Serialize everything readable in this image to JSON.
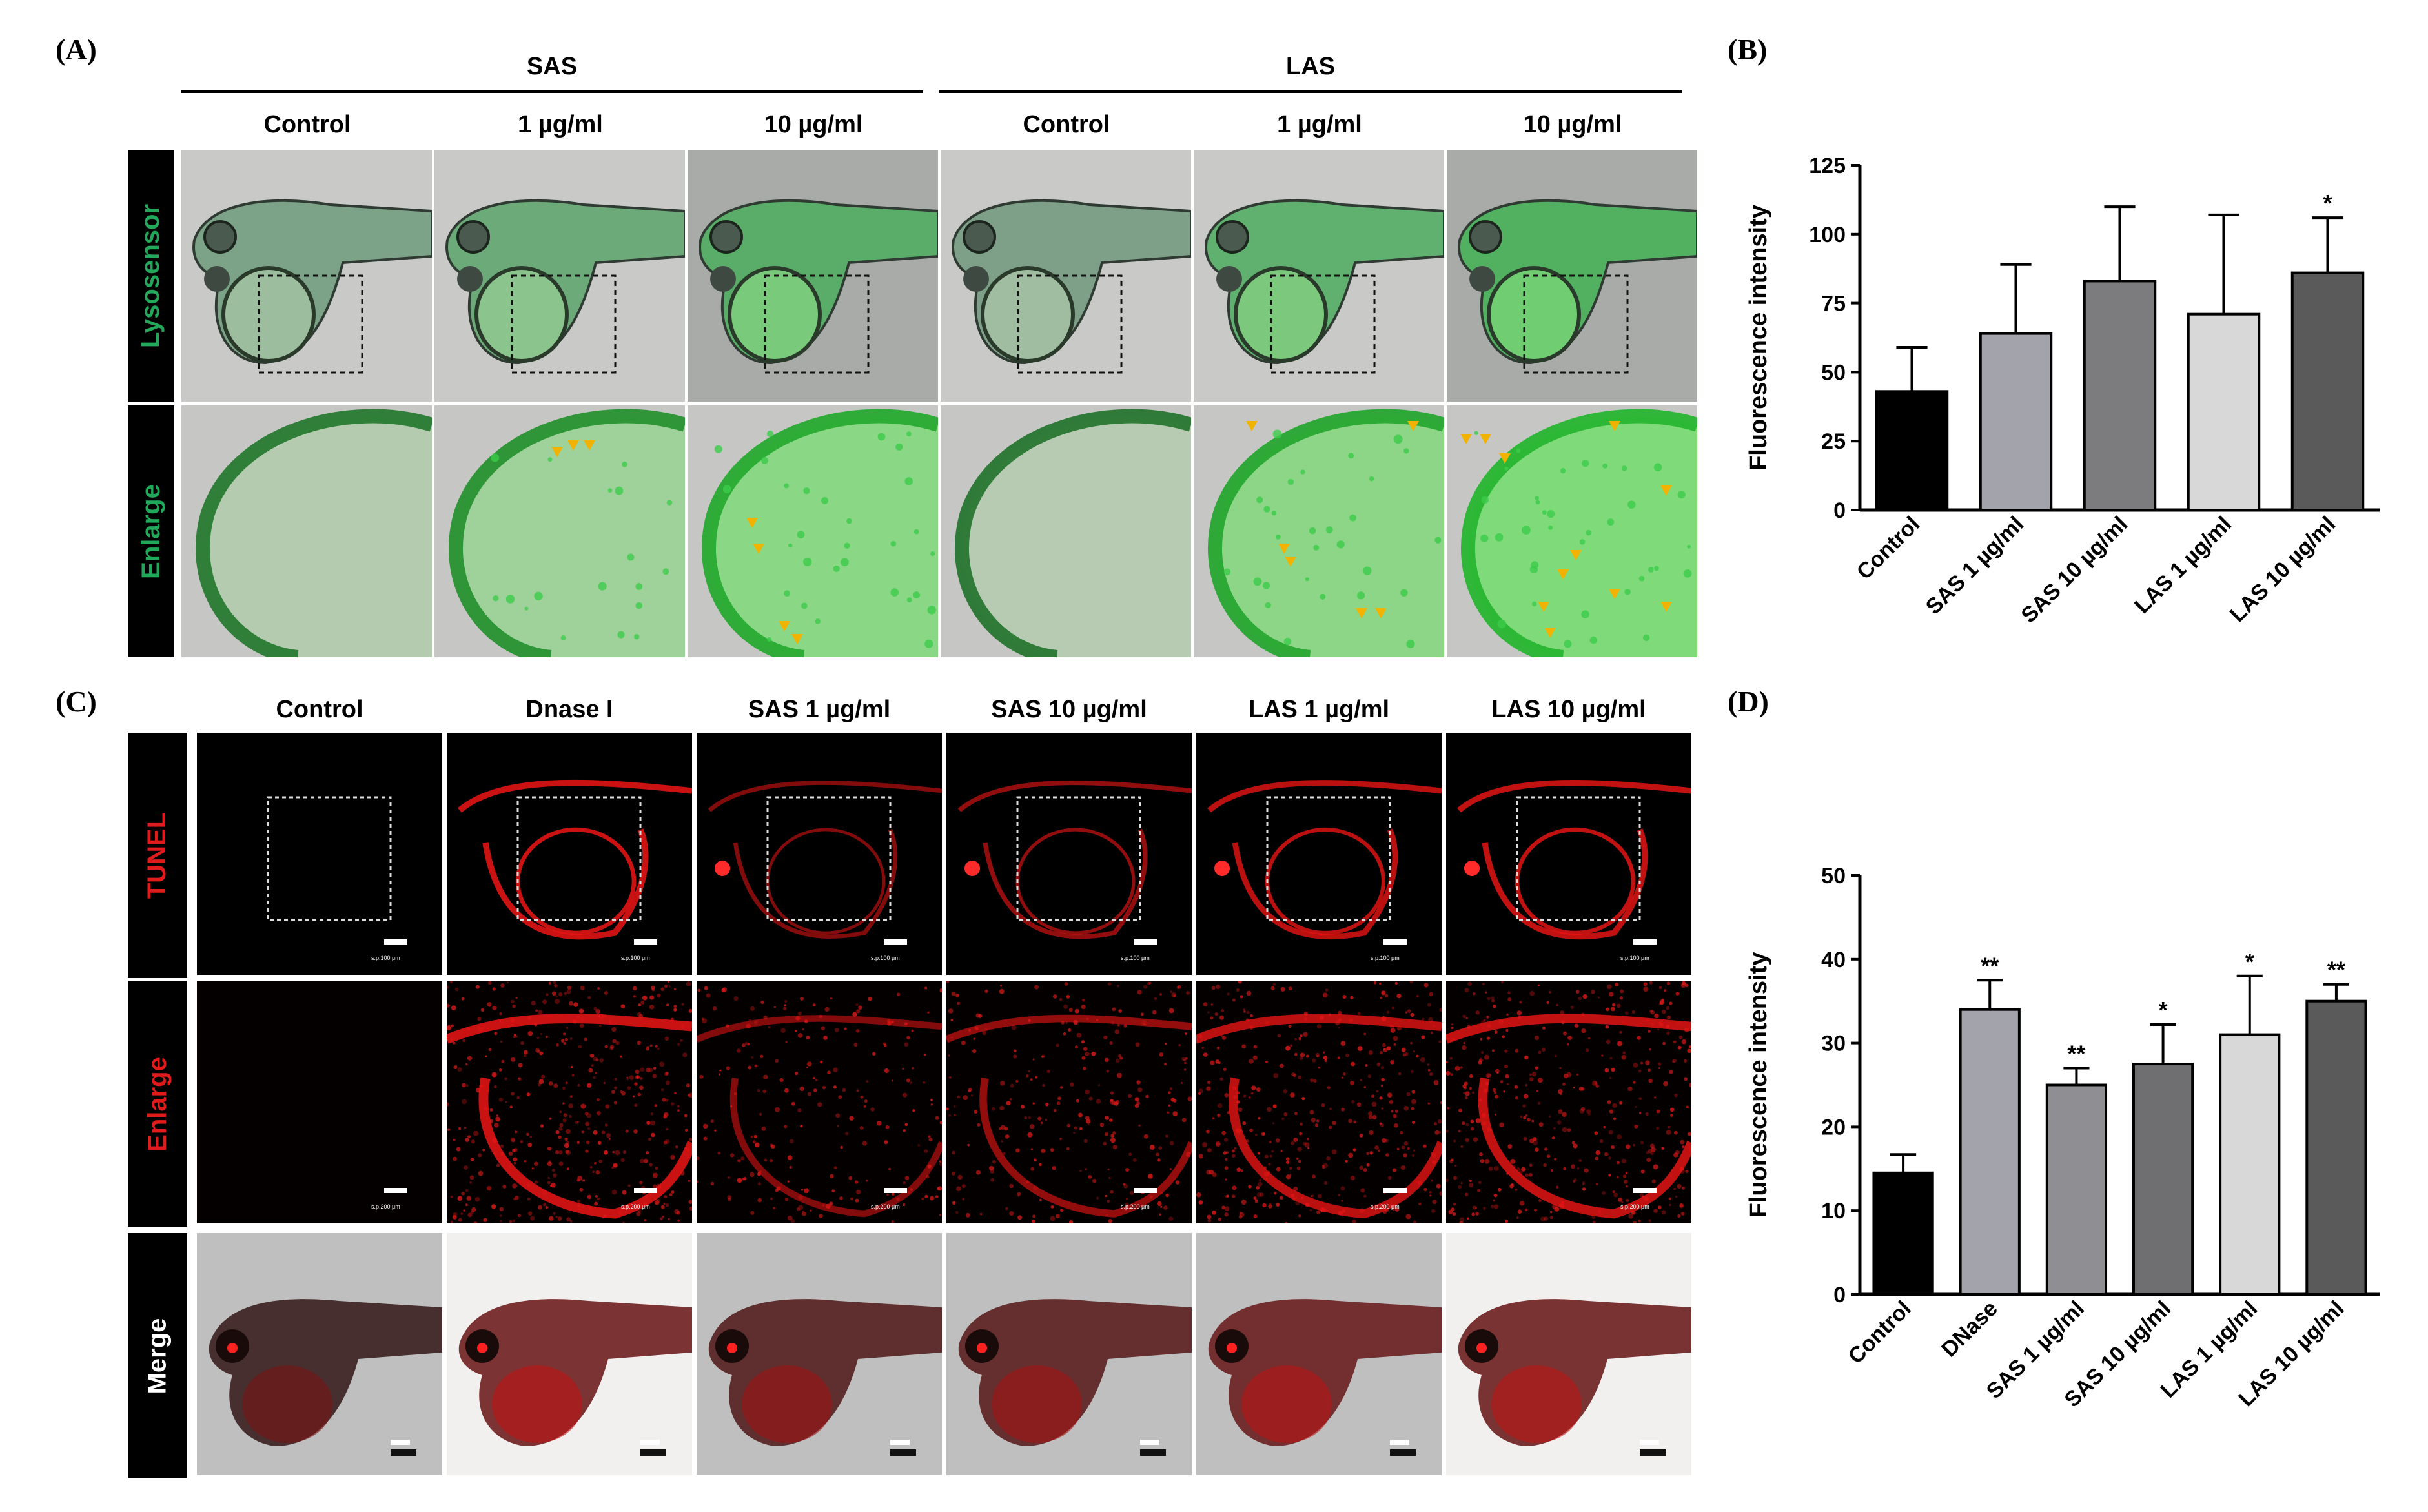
{
  "panels": {
    "A": {
      "letter": "(A)",
      "groups": [
        {
          "label": "SAS",
          "columns": [
            "Control",
            "1 µg/ml",
            "10 µg/ml"
          ]
        },
        {
          "label": "LAS",
          "columns": [
            "Control",
            "1 µg/ml",
            "10 µg/ml"
          ]
        }
      ],
      "rows": [
        "Lysosensor",
        "Enlarge"
      ]
    },
    "C": {
      "letter": "(C)",
      "columns": [
        "Control",
        "Dnase I",
        "SAS 1 µg/ml",
        "SAS 10 µg/ml",
        "LAS 1 µg/ml",
        "LAS 10 µg/ml"
      ],
      "rows": [
        "TUNEL",
        "Enlarge",
        "Merge"
      ],
      "scale_bar_text": "s.p.100 μm",
      "enlarge_scale_text": "s.p.200 μm"
    },
    "B": {
      "letter": "(B)"
    },
    "D": {
      "letter": "(D)"
    }
  },
  "colors": {
    "lysosensor_label": "#22a85a",
    "tunel_label": "#e01b1b",
    "merge_label": "#ffffff",
    "arrow": "#f2b300",
    "bar_outline": "#000000"
  },
  "chart_data": [
    {
      "type": "bar",
      "panel": "B",
      "categories": [
        "Control",
        "SAS 1 µg/ml",
        "SAS 10 µg/ml",
        "LAS 1 µg/ml",
        "LAS 10 µg/ml"
      ],
      "values": [
        43,
        64,
        83,
        71,
        86
      ],
      "errors": [
        16,
        25,
        27,
        36,
        20
      ],
      "significance": [
        "",
        "",
        "",
        "",
        "*"
      ],
      "bar_colors": [
        "#000000",
        "#a3a3ab",
        "#7c7c7e",
        "#d8d8d8",
        "#5a5a5a"
      ],
      "ylabel": "Fluorescence intensity",
      "ylim": [
        0,
        125
      ],
      "yticks": [
        0,
        25,
        50,
        75,
        100,
        125
      ]
    },
    {
      "type": "bar",
      "panel": "D",
      "categories": [
        "Control",
        "DNase",
        "SAS 1 µg/ml",
        "SAS 10 µg/ml",
        "LAS 1 µg/ml",
        "LAS 10 µg/ml"
      ],
      "values": [
        14.5,
        34,
        25,
        27.5,
        31,
        35
      ],
      "errors": [
        2.2,
        3.5,
        2.0,
        4.7,
        7.0,
        2.0
      ],
      "significance": [
        "",
        "**",
        "**",
        "*",
        "*",
        "**"
      ],
      "bar_colors": [
        "#000000",
        "#a3a3ab",
        "#8f8f93",
        "#6f6f71",
        "#d8d8d8",
        "#5a5a5a"
      ],
      "ylabel": "Fluorescence intensity",
      "ylim": [
        0,
        50
      ],
      "yticks": [
        0,
        10,
        20,
        30,
        40,
        50
      ]
    }
  ]
}
